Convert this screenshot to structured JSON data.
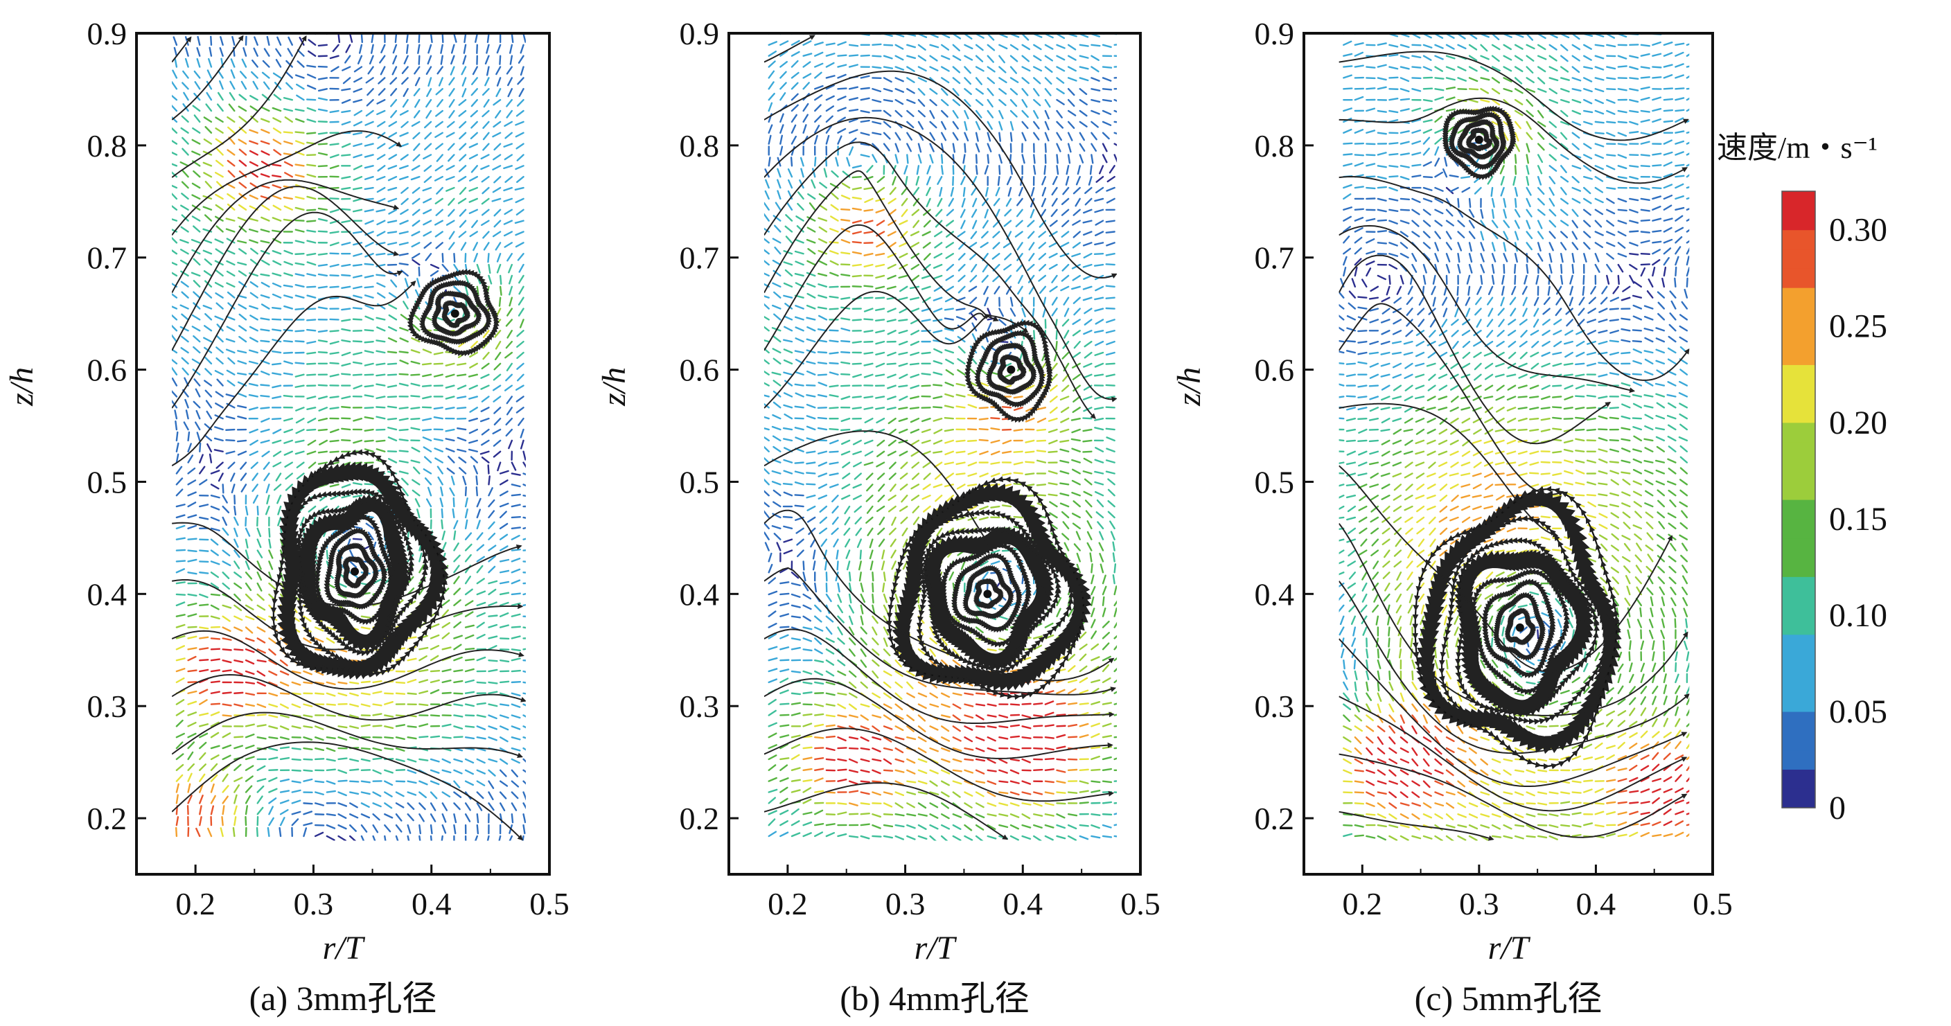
{
  "figure": {
    "colorbar": {
      "title": "速度/m・s⁻¹",
      "ticks": [
        0,
        0.05,
        0.1,
        0.15,
        0.2,
        0.25,
        0.3
      ],
      "tick_labels": [
        "0",
        "0.05",
        "0.10",
        "0.15",
        "0.20",
        "0.25",
        "0.30"
      ],
      "range": [
        0,
        0.32
      ],
      "colors": [
        "#2c2f8f",
        "#2f6fc0",
        "#3aa8d8",
        "#3ebf9a",
        "#57b441",
        "#9ccd3b",
        "#e6e23a",
        "#f3a02e",
        "#e8552b",
        "#d8262a"
      ]
    }
  },
  "chart_data": [
    {
      "type": "streamline",
      "panel": "a",
      "caption": "(a) 3mm孔径",
      "xlabel": "r/T",
      "ylabel": "z/h",
      "xlim": [
        0.15,
        0.5
      ],
      "ylim": [
        0.15,
        0.9
      ],
      "x_ticks": [
        0.2,
        0.3,
        0.4,
        0.5
      ],
      "x_tick_labels": [
        "0.2",
        "0.3",
        "0.4",
        "0.5"
      ],
      "y_ticks": [
        0.2,
        0.3,
        0.4,
        0.5,
        0.6,
        0.7,
        0.8,
        0.9
      ],
      "y_tick_labels": [
        "0.2",
        "0.3",
        "0.4",
        "0.5",
        "0.6",
        "0.7",
        "0.8",
        "0.9"
      ],
      "data_region": {
        "r": [
          0.18,
          0.48
        ],
        "z": [
          0.18,
          0.9
        ]
      },
      "vortices": [
        {
          "r": 0.335,
          "z": 0.42,
          "radius_r": 0.06,
          "radius_z": 0.085
        },
        {
          "r": 0.42,
          "z": 0.65,
          "radius_r": 0.03,
          "radius_z": 0.03
        }
      ],
      "high_speed_zones": [
        {
          "r": 0.26,
          "z": 0.78
        },
        {
          "r": 0.22,
          "z": 0.33
        },
        {
          "r": 0.2,
          "z": 0.2
        }
      ]
    },
    {
      "type": "streamline",
      "panel": "b",
      "caption": "(b) 4mm孔径",
      "xlabel": "r/T",
      "ylabel": "z/h",
      "xlim": [
        0.15,
        0.5
      ],
      "ylim": [
        0.15,
        0.9
      ],
      "x_ticks": [
        0.2,
        0.3,
        0.4,
        0.5
      ],
      "x_tick_labels": [
        "0.2",
        "0.3",
        "0.4",
        "0.5"
      ],
      "y_ticks": [
        0.2,
        0.3,
        0.4,
        0.5,
        0.6,
        0.7,
        0.8,
        0.9
      ],
      "y_tick_labels": [
        "0.2",
        "0.3",
        "0.4",
        "0.5",
        "0.6",
        "0.7",
        "0.8",
        "0.9"
      ],
      "data_region": {
        "r": [
          0.18,
          0.48
        ],
        "z": [
          0.18,
          0.9
        ]
      },
      "vortices": [
        {
          "r": 0.37,
          "z": 0.4,
          "radius_r": 0.07,
          "radius_z": 0.08
        },
        {
          "r": 0.39,
          "z": 0.6,
          "radius_r": 0.03,
          "radius_z": 0.035
        }
      ],
      "high_speed_zones": [
        {
          "r": 0.27,
          "z": 0.73
        },
        {
          "r": 0.25,
          "z": 0.25
        },
        {
          "r": 0.4,
          "z": 0.26
        }
      ]
    },
    {
      "type": "streamline",
      "panel": "c",
      "caption": "(c) 5mm孔径",
      "xlabel": "r/T",
      "ylabel": "z/h",
      "xlim": [
        0.15,
        0.5
      ],
      "ylim": [
        0.15,
        0.9
      ],
      "x_ticks": [
        0.2,
        0.3,
        0.4,
        0.5
      ],
      "x_tick_labels": [
        "0.2",
        "0.3",
        "0.4",
        "0.5"
      ],
      "y_ticks": [
        0.2,
        0.3,
        0.4,
        0.5,
        0.6,
        0.7,
        0.8,
        0.9
      ],
      "y_tick_labels": [
        "0.2",
        "0.3",
        "0.4",
        "0.5",
        "0.6",
        "0.7",
        "0.8",
        "0.9"
      ],
      "data_region": {
        "r": [
          0.18,
          0.48
        ],
        "z": [
          0.18,
          0.9
        ]
      },
      "vortices": [
        {
          "r": 0.335,
          "z": 0.37,
          "radius_r": 0.075,
          "radius_z": 0.1
        },
        {
          "r": 0.3,
          "z": 0.805,
          "radius_r": 0.025,
          "radius_z": 0.025
        }
      ],
      "high_speed_zones": [
        {
          "r": 0.22,
          "z": 0.25
        },
        {
          "r": 0.46,
          "z": 0.22
        }
      ]
    }
  ]
}
